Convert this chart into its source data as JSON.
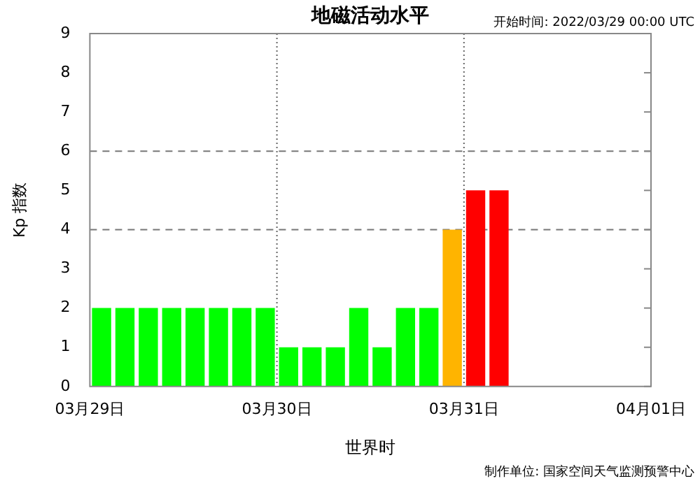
{
  "chart_data": {
    "type": "bar",
    "title": "地磁活动水平",
    "subtitle": "开始时间: 2022/03/29 00:00 UTC",
    "xlabel": "世界时",
    "ylabel": "Kp 指数",
    "annotations": [
      "制作单位: 国家空间天气监测预警中心"
    ],
    "x": [
      "2022-03-29T01:30",
      "2022-03-29T04:30",
      "2022-03-29T07:30",
      "2022-03-29T10:30",
      "2022-03-29T13:30",
      "2022-03-29T16:30",
      "2022-03-29T19:30",
      "2022-03-29T22:30",
      "2022-03-30T01:30",
      "2022-03-30T04:30",
      "2022-03-30T07:30",
      "2022-03-30T10:30",
      "2022-03-30T13:30",
      "2022-03-30T16:30",
      "2022-03-30T19:30",
      "2022-03-30T22:30",
      "2022-03-31T01:30",
      "2022-03-31T04:30"
    ],
    "values": [
      2,
      2,
      2,
      2,
      2,
      2,
      2,
      2,
      1,
      1,
      1,
      2,
      1,
      2,
      2,
      4,
      5,
      5
    ],
    "colors": [
      "#00ff00",
      "#00ff00",
      "#00ff00",
      "#00ff00",
      "#00ff00",
      "#00ff00",
      "#00ff00",
      "#00ff00",
      "#00ff00",
      "#00ff00",
      "#00ff00",
      "#00ff00",
      "#00ff00",
      "#00ff00",
      "#00ff00",
      "#ffb400",
      "#ff0000",
      "#ff0000"
    ],
    "xlim": [
      "2022-03-29",
      "2022-04-01"
    ],
    "xticks": [
      {
        "value": "2022-03-29",
        "label": "03月29日"
      },
      {
        "value": "2022-03-30",
        "label": "03月30日"
      },
      {
        "value": "2022-03-31",
        "label": "03月31日"
      },
      {
        "value": "2022-04-01",
        "label": "04月01日"
      }
    ],
    "ylim": [
      0,
      9
    ],
    "yticks": [
      0,
      1,
      2,
      3,
      4,
      5,
      6,
      7,
      8,
      9
    ],
    "ref_lines": [
      {
        "axis": "x",
        "value": "2022-03-30",
        "color": "#666666",
        "line_style": "dotted"
      },
      {
        "axis": "x",
        "value": "2022-03-31",
        "color": "#666666",
        "line_style": "dotted"
      },
      {
        "axis": "y",
        "value": 4,
        "color": "#777777",
        "line_style": "dashed"
      },
      {
        "axis": "y",
        "value": 6,
        "color": "#777777",
        "line_style": "dashed"
      }
    ],
    "grid": false,
    "legend": false
  }
}
